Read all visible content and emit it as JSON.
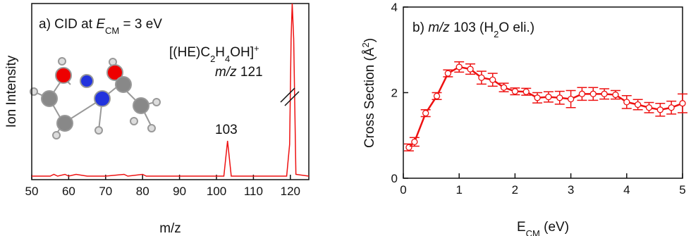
{
  "chart_data": [
    {
      "type": "line",
      "title": [
        "a) CID at ",
        "E",
        "CM",
        " = 3 eV"
      ],
      "x_label": "m/z",
      "y_label": "Ion Intensity",
      "annotations": [
        {
          "text": [
            "[(HE)C",
            "2",
            "H",
            "4",
            "OH]",
            "+"
          ]
        },
        {
          "text": [
            "m/z",
            " 121"
          ]
        },
        {
          "text": [
            "103"
          ]
        }
      ],
      "color": "#ee1111",
      "xlim": [
        50,
        125
      ],
      "xticks": [
        50,
        60,
        70,
        80,
        90,
        100,
        110,
        120
      ],
      "ylim": [
        0,
        1
      ],
      "x": [
        50,
        55,
        56,
        57,
        59,
        60,
        62,
        65,
        70,
        75,
        76,
        80,
        81,
        85,
        90,
        95,
        100,
        102,
        102.5,
        103,
        103.5,
        104,
        110,
        115,
        119,
        119.8,
        120.2,
        120.5,
        120.9,
        121.5,
        125
      ],
      "values": [
        0.02,
        0.02,
        0.03,
        0.02,
        0.03,
        0.02,
        0.03,
        0.02,
        0.02,
        0.03,
        0.02,
        0.03,
        0.02,
        0.02,
        0.02,
        0.02,
        0.02,
        0.02,
        0.12,
        0.22,
        0.12,
        0.02,
        0.02,
        0.02,
        0.02,
        0.2,
        0.8,
        1.0,
        0.8,
        0.03,
        0.02
      ]
    },
    {
      "type": "errorbar",
      "title": [
        "b) ",
        "m/z",
        " 103 (H",
        "2",
        "O eli.)"
      ],
      "x_label": [
        "E",
        "CM",
        " (eV)"
      ],
      "y_label": [
        "Cross Section (Å",
        "2",
        ")"
      ],
      "color": "#ee1111",
      "xlim": [
        0,
        5
      ],
      "xticks": [
        0,
        1,
        2,
        3,
        4,
        5
      ],
      "ylim": [
        0,
        4
      ],
      "yticks": [
        0,
        2,
        4
      ],
      "x": [
        0.1,
        0.2,
        0.4,
        0.6,
        0.8,
        1.0,
        1.2,
        1.4,
        1.6,
        1.8,
        2.0,
        2.2,
        2.4,
        2.6,
        2.8,
        3.0,
        3.2,
        3.4,
        3.6,
        3.8,
        4.0,
        4.2,
        4.4,
        4.6,
        4.8,
        5.0
      ],
      "values": [
        0.72,
        0.85,
        1.52,
        1.92,
        2.45,
        2.6,
        2.55,
        2.35,
        2.3,
        2.12,
        2.03,
        2.02,
        1.88,
        1.9,
        1.88,
        1.85,
        1.97,
        1.97,
        1.97,
        1.95,
        1.78,
        1.72,
        1.65,
        1.6,
        1.65,
        1.75
      ],
      "errors": [
        0.08,
        0.1,
        0.08,
        0.08,
        0.08,
        0.12,
        0.12,
        0.15,
        0.15,
        0.1,
        0.08,
        0.08,
        0.12,
        0.12,
        0.15,
        0.2,
        0.15,
        0.15,
        0.12,
        0.1,
        0.15,
        0.12,
        0.12,
        0.15,
        0.15,
        0.22
      ]
    }
  ]
}
